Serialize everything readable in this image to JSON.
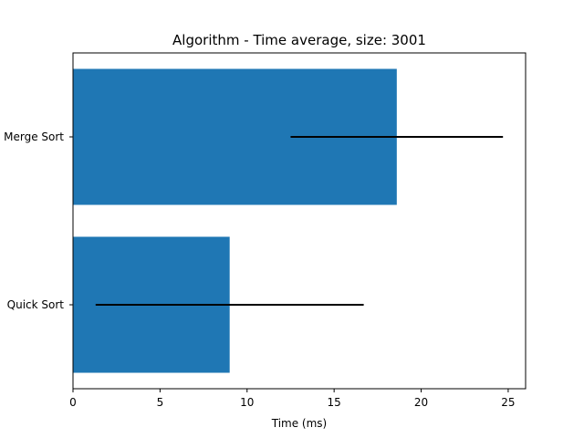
{
  "chart_data": {
    "type": "bar",
    "orientation": "horizontal",
    "title": "Algorithm - Time average, size: 3001",
    "xlabel": "Time (ms)",
    "ylabel": "",
    "categories": [
      "Quick Sort",
      "Merge Sort"
    ],
    "values": [
      9.0,
      18.6
    ],
    "error": [
      7.7,
      6.1
    ],
    "xlim": [
      0,
      26
    ],
    "xticks": [
      0,
      5,
      10,
      15,
      20,
      25
    ],
    "grid": false,
    "bar_color": "#1f77b4",
    "error_color": "#000000"
  }
}
